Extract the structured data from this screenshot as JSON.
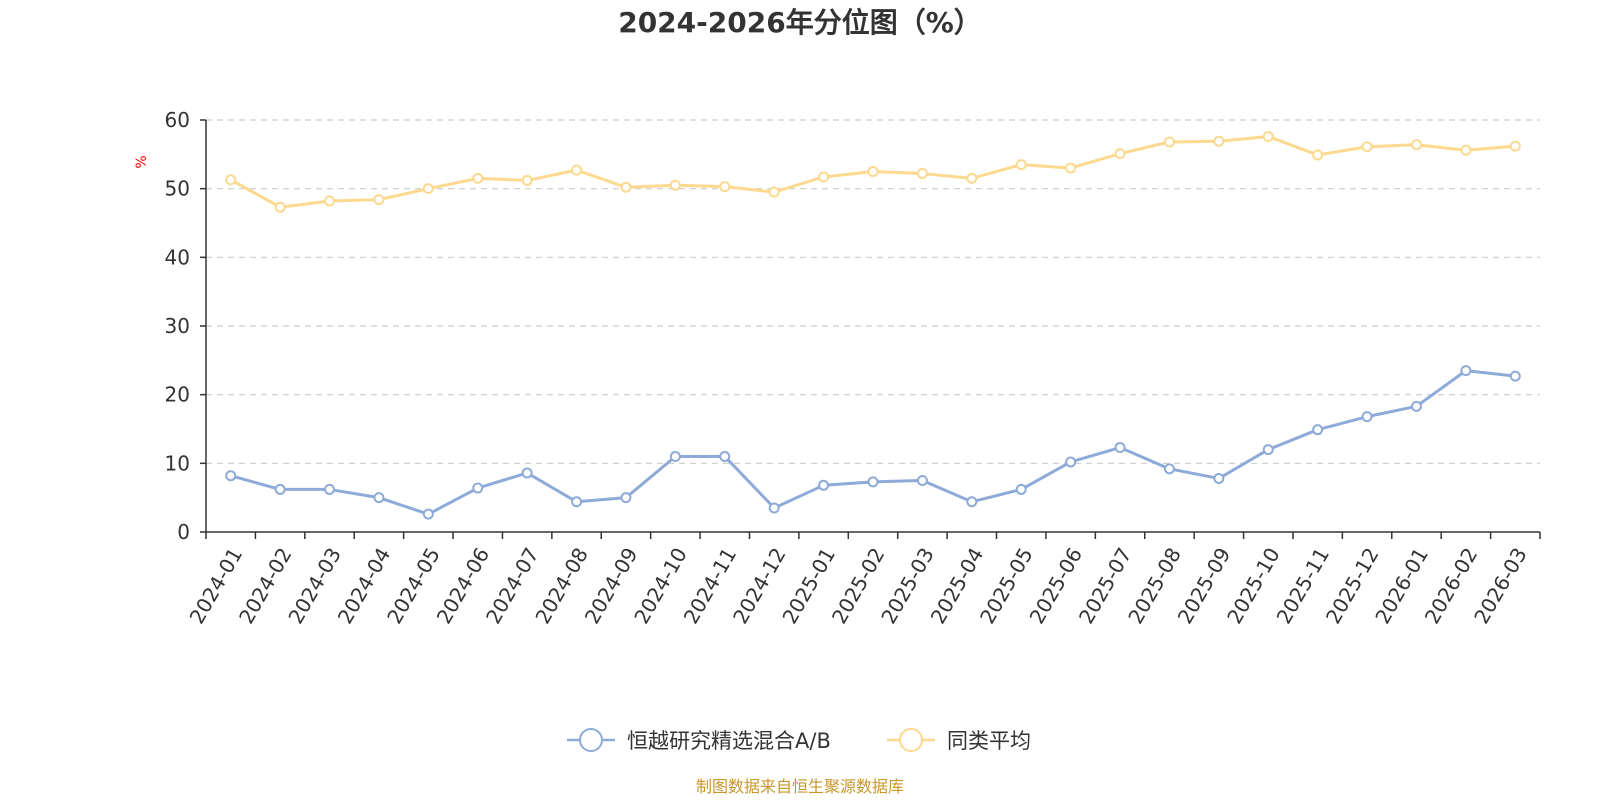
{
  "chart_data": {
    "type": "line",
    "title": "2024-2026年分位图（%）",
    "ylabel": "%",
    "xlabel": "",
    "ylim": [
      0,
      60
    ],
    "yticks": [
      0,
      10,
      20,
      30,
      40,
      50,
      60
    ],
    "grid": true,
    "legend_position": "bottom",
    "categories": [
      "2024-01",
      "2024-02",
      "2024-03",
      "2024-04",
      "2024-05",
      "2024-06",
      "2024-07",
      "2024-08",
      "2024-09",
      "2024-10",
      "2024-11",
      "2024-12",
      "2025-01",
      "2025-02",
      "2025-03",
      "2025-04",
      "2025-05",
      "2025-06",
      "2025-07",
      "2025-08",
      "2025-09",
      "2025-10",
      "2025-11",
      "2025-12",
      "2026-01",
      "2026-02",
      "2026-03"
    ],
    "series": [
      {
        "name": "恒越研究精选混合A/B",
        "color": "#8eaad8",
        "values": [
          8.2,
          6.2,
          6.2,
          5.0,
          2.6,
          6.4,
          8.6,
          4.4,
          5.0,
          11.0,
          11.0,
          3.5,
          6.8,
          7.3,
          7.5,
          4.4,
          6.2,
          10.2,
          12.3,
          9.2,
          7.8,
          12.0,
          14.9,
          16.8,
          18.3,
          23.5,
          22.7
        ]
      },
      {
        "name": "同类平均",
        "color": "#fcd98f",
        "values": [
          51.3,
          47.3,
          48.2,
          48.4,
          50.0,
          51.5,
          51.2,
          52.7,
          50.2,
          50.5,
          50.3,
          49.5,
          51.7,
          52.5,
          52.2,
          51.5,
          53.5,
          53.0,
          55.1,
          56.8,
          56.9,
          57.6,
          54.9,
          56.1,
          56.4,
          55.6,
          56.2
        ]
      }
    ]
  },
  "footer": {
    "source": "制图数据来自恒生聚源数据库"
  }
}
